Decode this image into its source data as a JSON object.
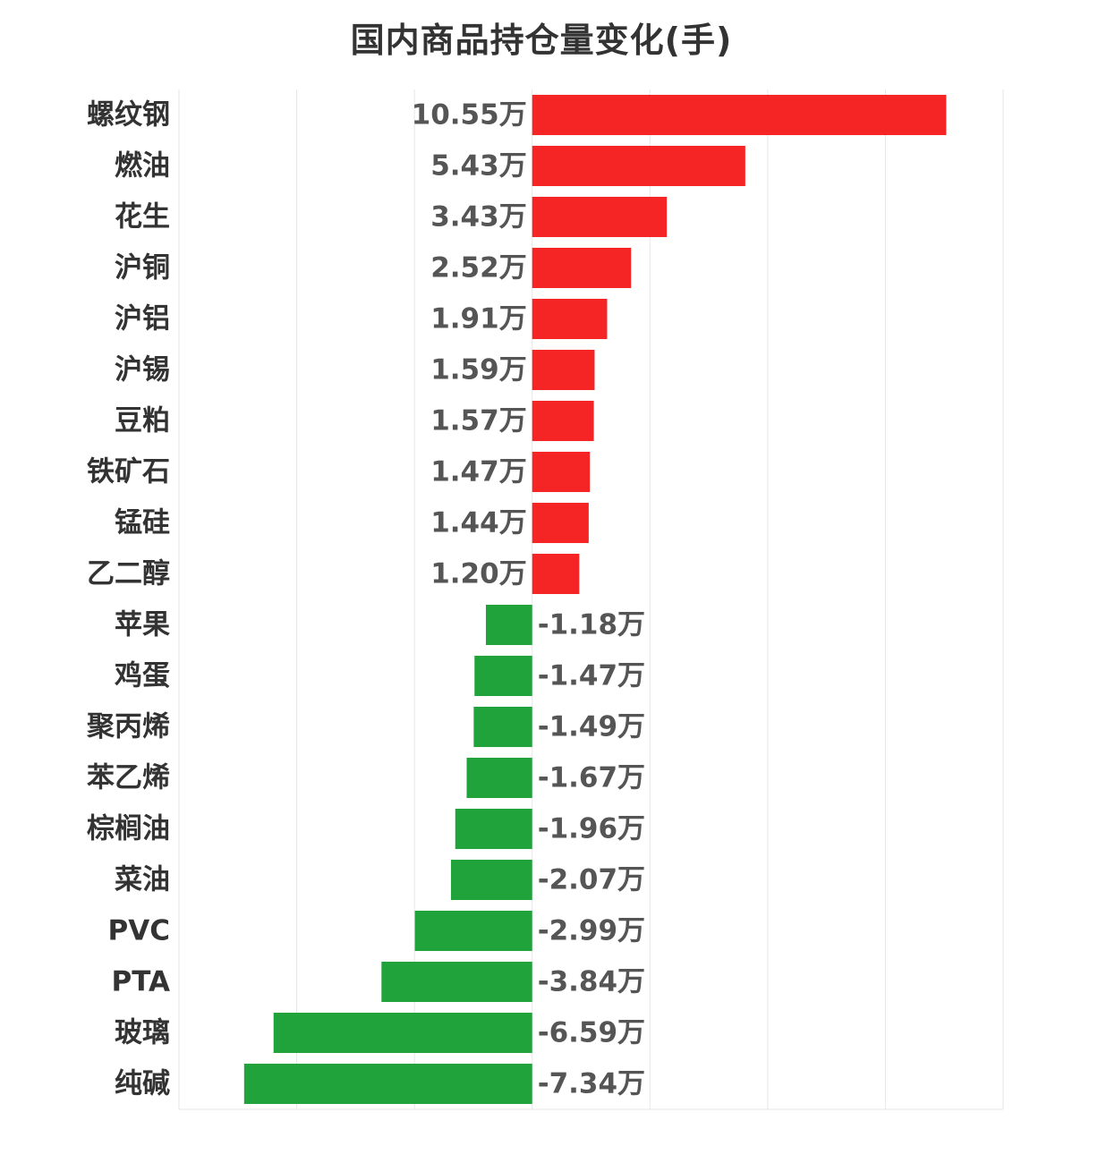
{
  "chart_data": {
    "type": "bar",
    "orientation": "horizontal",
    "title": "国内商品持仓量变化(手)",
    "categories": [
      "螺纹钢",
      "燃油",
      "花生",
      "沪铜",
      "沪铝",
      "沪锡",
      "豆粕",
      "铁矿石",
      "锰硅",
      "乙二醇",
      "苹果",
      "鸡蛋",
      "聚丙烯",
      "苯乙烯",
      "棕榈油",
      "菜油",
      "PVC",
      "PTA",
      "玻璃",
      "纯碱"
    ],
    "values": [
      105500,
      54300,
      34300,
      25200,
      19100,
      15900,
      15700,
      14700,
      14400,
      12000,
      -11800,
      -14700,
      -14900,
      -16700,
      -19600,
      -20700,
      -29900,
      -38400,
      -65900,
      -73400
    ],
    "value_labels": [
      "10.55万",
      "5.43万",
      "3.43万",
      "2.52万",
      "1.91万",
      "1.59万",
      "1.57万",
      "1.47万",
      "1.44万",
      "1.20万",
      "-1.18万",
      "-1.47万",
      "-1.49万",
      "-1.67万",
      "-1.96万",
      "-2.07万",
      "-2.99万",
      "-3.84万",
      "-6.59万",
      "-7.34万"
    ],
    "xlim": [
      -90000,
      120000
    ],
    "grid": true,
    "x_tick_labels_shown": false,
    "colors": {
      "positive": "#f52525",
      "negative": "#21a33b",
      "grid": "#e6e6e6",
      "category_text": "#333333",
      "value_text": "#555555"
    }
  }
}
